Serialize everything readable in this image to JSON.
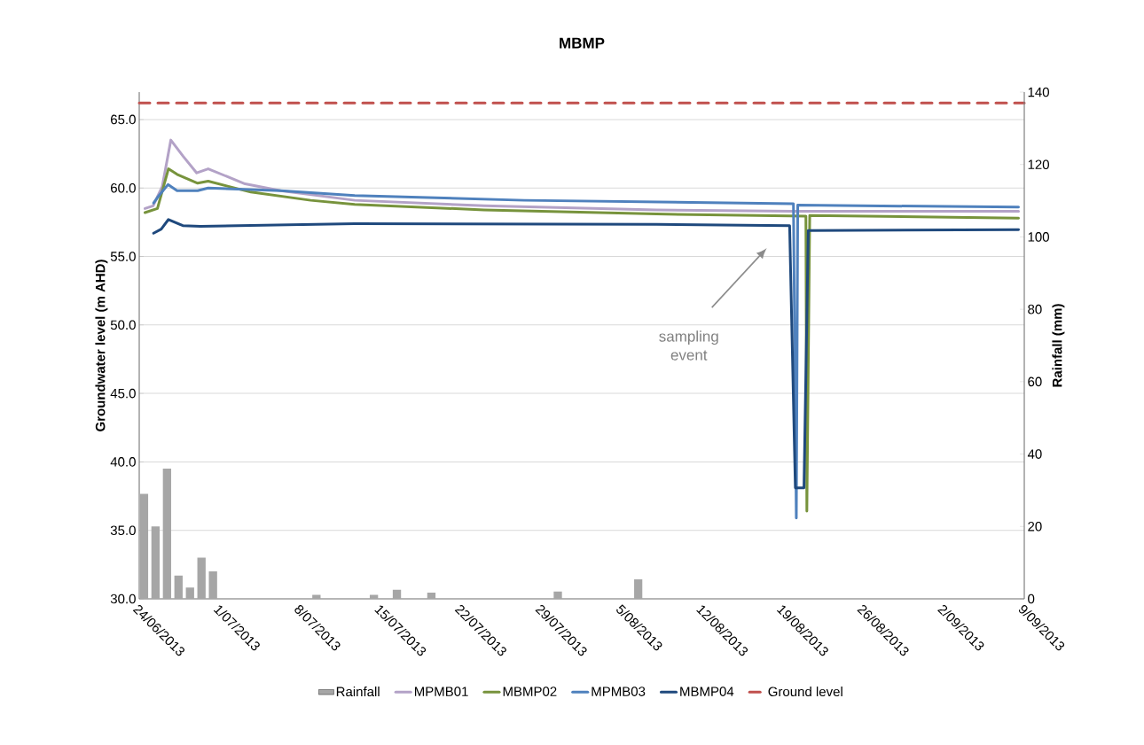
{
  "chart_data": {
    "type": "line",
    "title": "MBMP",
    "xlabel": null,
    "ylabel": "Groundwater level (m AHD)",
    "y2label": "Rainfall (mm)",
    "xlim": [
      "2013-06-24",
      "2013-09-09"
    ],
    "xticks": [
      {
        "value": "2013-06-24",
        "label": "24/06/2013"
      },
      {
        "value": "2013-07-01",
        "label": "1/07/2013"
      },
      {
        "value": "2013-07-08",
        "label": "8/07/2013"
      },
      {
        "value": "2013-07-15",
        "label": "15/07/2013"
      },
      {
        "value": "2013-07-22",
        "label": "22/07/2013"
      },
      {
        "value": "2013-07-29",
        "label": "29/07/2013"
      },
      {
        "value": "2013-08-05",
        "label": "5/08/2013"
      },
      {
        "value": "2013-08-12",
        "label": "12/08/2013"
      },
      {
        "value": "2013-08-19",
        "label": "19/08/2013"
      },
      {
        "value": "2013-08-26",
        "label": "26/08/2013"
      },
      {
        "value": "2013-09-02",
        "label": "2/09/2013"
      },
      {
        "value": "2013-09-09",
        "label": "9/09/2013"
      }
    ],
    "ylim": [
      30,
      67
    ],
    "yticks": [
      {
        "value": 30,
        "label": "30.0"
      },
      {
        "value": 35,
        "label": "35.0"
      },
      {
        "value": 40,
        "label": "40.0"
      },
      {
        "value": 45,
        "label": "45.0"
      },
      {
        "value": 50,
        "label": "50.0"
      },
      {
        "value": 55,
        "label": "55.0"
      },
      {
        "value": 60,
        "label": "60.0"
      },
      {
        "value": 65,
        "label": "65.0"
      }
    ],
    "y2lim": [
      0,
      140
    ],
    "y2ticks": [
      0,
      20,
      40,
      60,
      80,
      100,
      120,
      140
    ],
    "grid": "y",
    "legend": "bottom",
    "series": [
      {
        "name": "Rainfall",
        "type": "bar",
        "axis": "y2",
        "color": "#a6a6a6",
        "x": [
          "2013-06-24T10:00",
          "2013-06-25T10:00",
          "2013-06-26T10:00",
          "2013-06-27T10:00",
          "2013-06-28T10:00",
          "2013-06-29T10:00",
          "2013-06-30T10:00",
          "2013-07-09T10:00",
          "2013-07-14T10:00",
          "2013-07-16T10:00",
          "2013-07-19T10:00",
          "2013-07-30T10:00",
          "2013-08-06T10:00"
        ],
        "values": [
          29,
          20,
          36,
          6.4,
          3.1,
          11.4,
          7.6,
          1.1,
          1.1,
          2.5,
          1.7,
          2,
          5.4
        ]
      },
      {
        "name": "MPMB01",
        "color": "#b3a2c7",
        "x": [
          "2013-06-24T12:00",
          "2013-06-25T05:00",
          "2013-06-26T00:00",
          "2013-06-26T18:00",
          "2013-06-27T20:00",
          "2013-06-29T00:00",
          "2013-06-30T00:00",
          "2013-07-03T05:00",
          "2013-07-06T07:00",
          "2013-07-12T18:00",
          "2013-07-24",
          "2013-08-08",
          "2013-08-19T22:00",
          "2013-09-08T12:00"
        ],
        "values": [
          58.5,
          58.7,
          60.1,
          63.5,
          62.3,
          61.1,
          61.4,
          60.3,
          59.8,
          59.1,
          58.7,
          58.4,
          58.3,
          58.3
        ]
      },
      {
        "name": "MBMP02",
        "color": "#77933c",
        "x": [
          "2013-06-24T12:00",
          "2013-06-25T14:00",
          "2013-06-26T13:00",
          "2013-06-27T07:00",
          "2013-06-29T02:00",
          "2013-06-30T00:00",
          "2013-07-03T17:00",
          "2013-07-08T22:00",
          "2013-07-12T18:00",
          "2013-07-24",
          "2013-08-08",
          "2013-08-21T00:00",
          "2013-08-21T02:00",
          "2013-08-21T08:00",
          "2013-09-08T12:00"
        ],
        "values": [
          58.2,
          58.5,
          61.4,
          61.0,
          60.35,
          60.5,
          59.7,
          59.1,
          58.8,
          58.4,
          58.1,
          57.95,
          36.4,
          58.0,
          57.8
        ]
      },
      {
        "name": "MPMB03",
        "color": "#4f81bd",
        "x": [
          "2013-06-25T06:00",
          "2013-06-25T14:00",
          "2013-06-26T12:00",
          "2013-06-27T07:00",
          "2013-06-29T02:00",
          "2013-06-30T00:00",
          "2013-07-06T07:00",
          "2013-07-12T18:00",
          "2013-07-27T12:00",
          "2013-08-19T22:00",
          "2013-08-20T04:00",
          "2013-08-20T07:00",
          "2013-09-08T12:00"
        ],
        "values": [
          58.9,
          59.3,
          60.25,
          59.8,
          59.8,
          60.0,
          59.8,
          59.45,
          59.1,
          58.85,
          35.9,
          58.75,
          58.6
        ]
      },
      {
        "name": "MBMP04",
        "color": "#1f497d",
        "x": [
          "2013-06-25T06:00",
          "2013-06-25T22:00",
          "2013-06-26T13:00",
          "2013-06-27T19:00",
          "2013-06-29T08:00",
          "2013-07-12T18:00",
          "2013-08-08",
          "2013-08-19T14:00",
          "2013-08-20T02:00",
          "2013-08-20T20:00",
          "2013-08-21T05:00",
          "2013-09-08T12:00"
        ],
        "values": [
          56.7,
          57.0,
          57.7,
          57.25,
          57.2,
          57.4,
          57.35,
          57.25,
          38.1,
          38.1,
          56.9,
          56.95
        ]
      },
      {
        "name": "Ground level",
        "color": "#c0504d",
        "line_style": "dashed",
        "x": [
          "2013-06-24",
          "2013-09-09"
        ],
        "values": [
          66.2,
          66.2
        ]
      }
    ],
    "annotations": [
      "sampling event"
    ]
  }
}
